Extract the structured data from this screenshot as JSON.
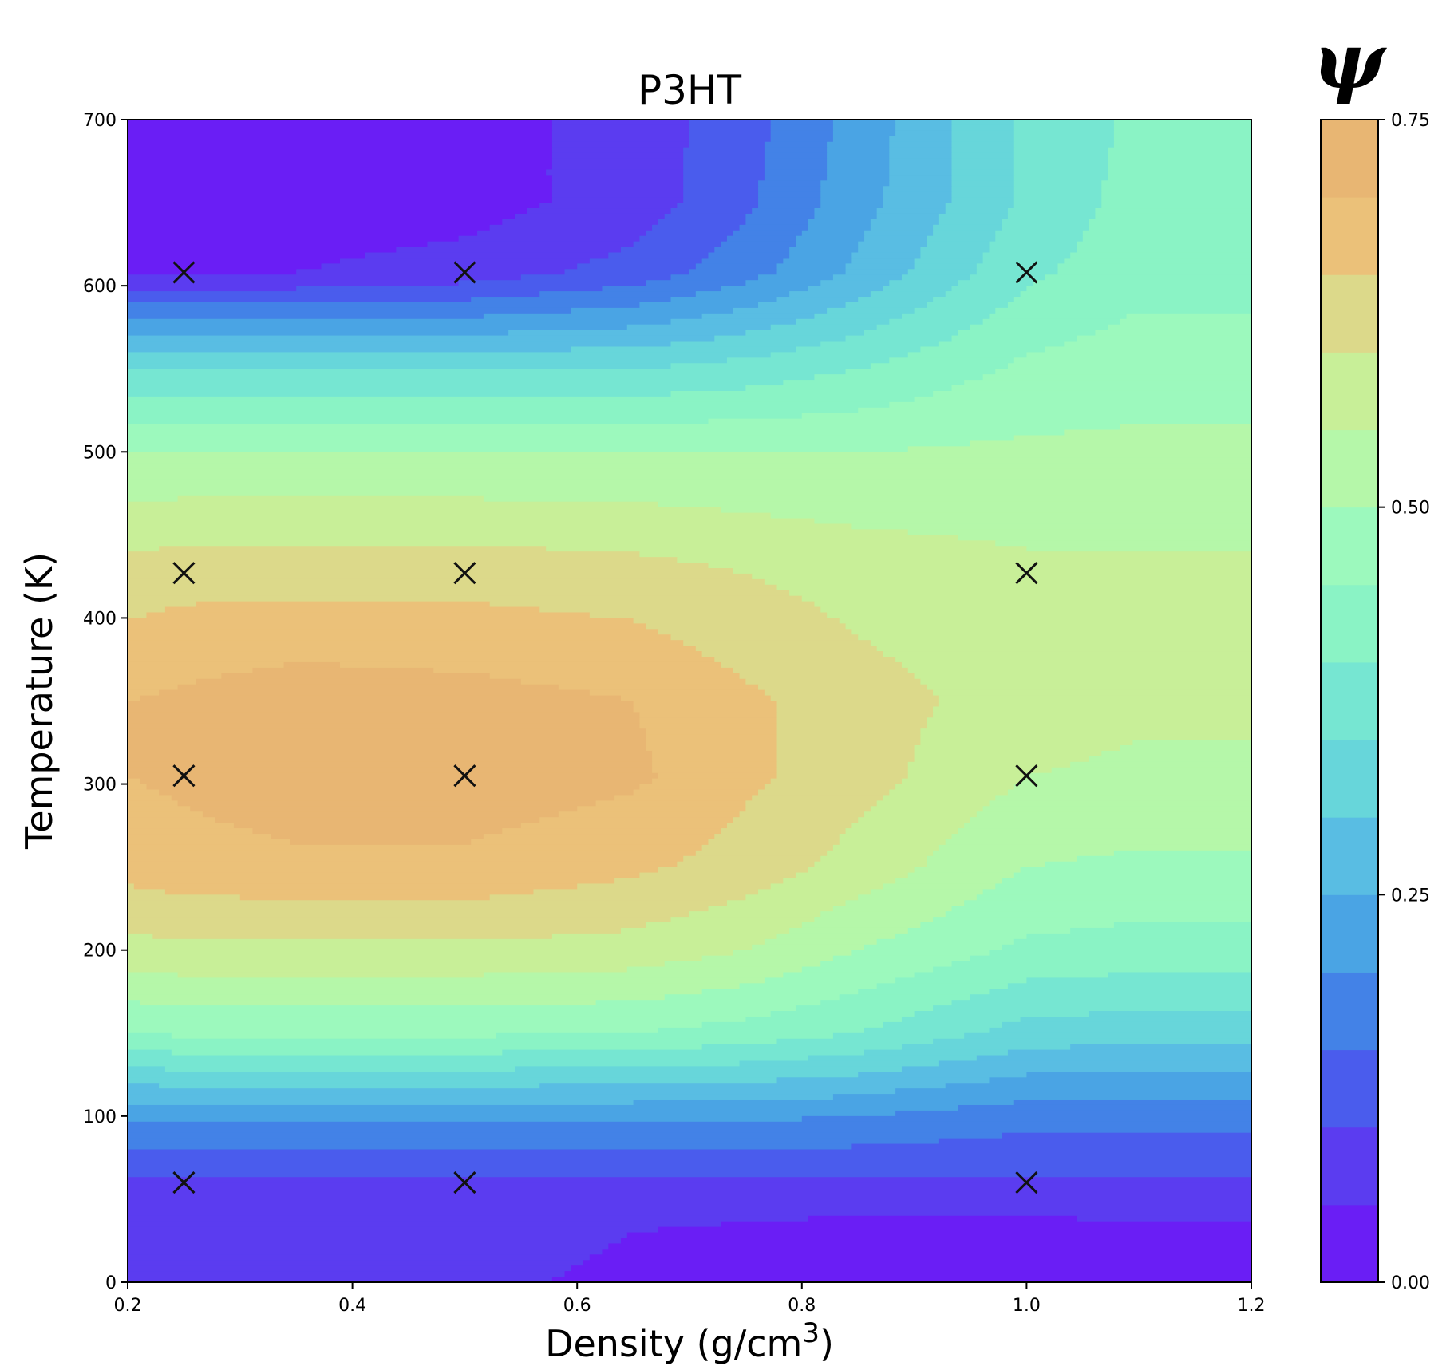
{
  "chart_data": {
    "type": "contour",
    "title": "P3HT",
    "xlabel": "Density (g/cm",
    "xlabel_sup": "3",
    "xlabel_end": ")",
    "ylabel": "Temperature (K)",
    "xlim": [
      0.2,
      1.2
    ],
    "ylim": [
      0,
      700
    ],
    "x_ticks": [
      "0.2",
      "0.4",
      "0.6",
      "0.8",
      "1.0",
      "1.2"
    ],
    "y_ticks": [
      "0",
      "100",
      "200",
      "300",
      "400",
      "500",
      "600",
      "700"
    ],
    "grid": false,
    "colorbar": {
      "label": "ψ",
      "range": [
        0.0,
        0.75
      ],
      "ticks": [
        "0.00",
        "0.25",
        "0.50",
        "0.75"
      ],
      "levels": 15,
      "colors": [
        "#6a1ef5",
        "#5b3cf0",
        "#4a5ced",
        "#4382e7",
        "#4aa4e4",
        "#59bde3",
        "#67d6da",
        "#76e6d2",
        "#8af3c5",
        "#9cf9bd",
        "#b5f7a9",
        "#c8ef98",
        "#dcd98a",
        "#ebc179",
        "#e8b673"
      ]
    },
    "sample_points": {
      "x": [
        0.25,
        0.5,
        1.0
      ],
      "y": [
        60,
        305,
        427,
        608
      ],
      "marker": "x"
    },
    "grid_values": {
      "x": [
        0.2,
        0.25,
        0.35,
        0.5,
        0.65,
        0.75,
        0.85,
        1.0,
        1.1,
        1.2
      ],
      "y": [
        0,
        30,
        60,
        100,
        150,
        200,
        250,
        305,
        350,
        427,
        500,
        550,
        608,
        650,
        700
      ],
      "z": [
        [
          0.07,
          0.07,
          0.07,
          0.06,
          0.04,
          0.03,
          0.02,
          0.02,
          0.03,
          0.03
        ],
        [
          0.08,
          0.08,
          0.08,
          0.07,
          0.05,
          0.04,
          0.03,
          0.03,
          0.04,
          0.04
        ],
        [
          0.09,
          0.09,
          0.09,
          0.09,
          0.09,
          0.09,
          0.09,
          0.09,
          0.09,
          0.09
        ],
        [
          0.21,
          0.21,
          0.21,
          0.21,
          0.21,
          0.21,
          0.2,
          0.17,
          0.17,
          0.17
        ],
        [
          0.45,
          0.46,
          0.46,
          0.46,
          0.45,
          0.43,
          0.4,
          0.33,
          0.32,
          0.32
        ],
        [
          0.58,
          0.59,
          0.59,
          0.59,
          0.58,
          0.55,
          0.5,
          0.44,
          0.43,
          0.43
        ],
        [
          0.67,
          0.68,
          0.69,
          0.69,
          0.66,
          0.63,
          0.58,
          0.5,
          0.49,
          0.49
        ],
        [
          0.7,
          0.71,
          0.73,
          0.73,
          0.71,
          0.66,
          0.62,
          0.55,
          0.54,
          0.54
        ],
        [
          0.7,
          0.71,
          0.73,
          0.72,
          0.7,
          0.66,
          0.62,
          0.58,
          0.56,
          0.56
        ],
        [
          0.62,
          0.63,
          0.63,
          0.63,
          0.62,
          0.6,
          0.58,
          0.56,
          0.56,
          0.56
        ],
        [
          0.5,
          0.5,
          0.5,
          0.5,
          0.5,
          0.5,
          0.5,
          0.51,
          0.51,
          0.51
        ],
        [
          0.35,
          0.35,
          0.35,
          0.35,
          0.35,
          0.37,
          0.4,
          0.46,
          0.48,
          0.48
        ],
        [
          0.05,
          0.05,
          0.05,
          0.07,
          0.12,
          0.18,
          0.26,
          0.39,
          0.43,
          0.43
        ],
        [
          0.02,
          0.02,
          0.02,
          0.03,
          0.07,
          0.14,
          0.23,
          0.36,
          0.42,
          0.42
        ],
        [
          0.02,
          0.02,
          0.02,
          0.03,
          0.07,
          0.13,
          0.22,
          0.36,
          0.41,
          0.41
        ]
      ]
    }
  }
}
